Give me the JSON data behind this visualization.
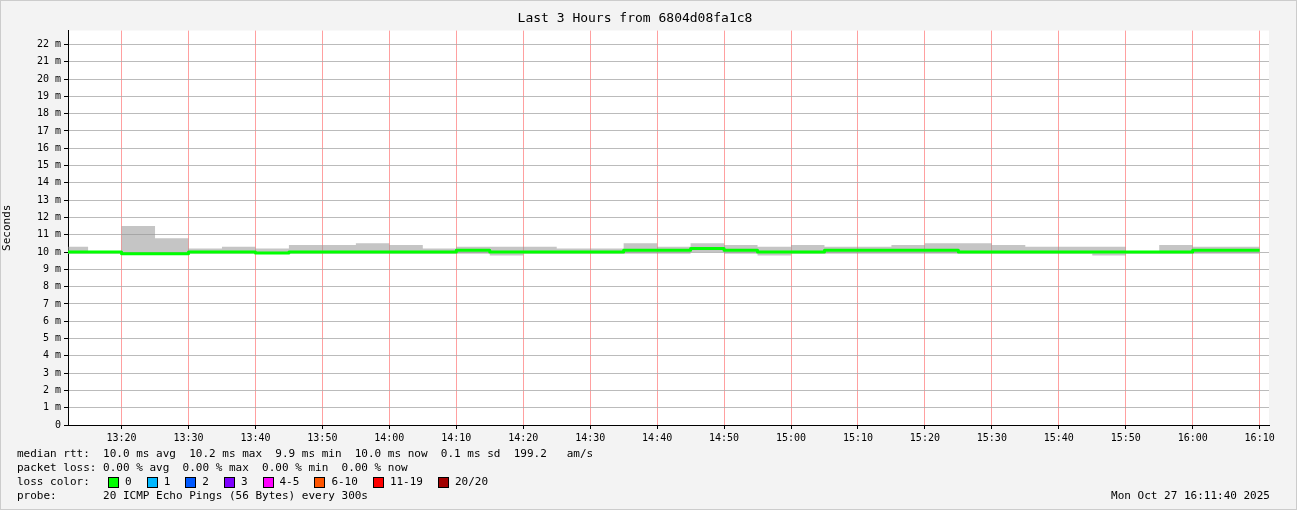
{
  "chart_data": {
    "type": "step",
    "title": "Last 3 Hours from 6804d08fa1c8",
    "ylabel": "Seconds",
    "legend_title": "loss color:",
    "legend": "bottom left",
    "grid": true,
    "marker": "none",
    "line_style": "solid",
    "x": [
      13.2,
      13.25,
      13.3333,
      13.4167,
      13.5,
      13.5833,
      13.6667,
      13.75,
      13.8333,
      13.9167,
      14,
      14.0833,
      14.1667,
      14.25,
      14.3333,
      14.4167,
      14.5,
      14.5833,
      14.6667,
      14.75,
      14.8333,
      14.9167,
      15,
      15.0833,
      15.1667,
      15.25,
      15.3333,
      15.4167,
      15.5,
      15.5833,
      15.6667,
      15.75,
      15.8333,
      15.9167,
      16,
      16.0833,
      16.1667
    ],
    "xlim": [
      13.2,
      16.19
    ],
    "xticks": [
      {
        "value": 13.3333,
        "label": "13:20"
      },
      {
        "value": 13.5,
        "label": "13:30"
      },
      {
        "value": 13.6667,
        "label": "13:40"
      },
      {
        "value": 13.8333,
        "label": "13:50"
      },
      {
        "value": 14,
        "label": "14:00"
      },
      {
        "value": 14.1667,
        "label": "14:10"
      },
      {
        "value": 14.3333,
        "label": "14:20"
      },
      {
        "value": 14.5,
        "label": "14:30"
      },
      {
        "value": 14.6667,
        "label": "14:40"
      },
      {
        "value": 14.8333,
        "label": "14:50"
      },
      {
        "value": 15,
        "label": "15:00"
      },
      {
        "value": 15.1667,
        "label": "15:10"
      },
      {
        "value": 15.3333,
        "label": "15:20"
      },
      {
        "value": 15.5,
        "label": "15:30"
      },
      {
        "value": 15.6667,
        "label": "15:40"
      },
      {
        "value": 15.8333,
        "label": "15:50"
      },
      {
        "value": 16,
        "label": "16:00"
      },
      {
        "value": 16.1667,
        "label": "16:10"
      }
    ],
    "ylim": [
      0,
      22.8
    ],
    "yticks": [
      0,
      {
        "value": 1,
        "label": "1 m"
      },
      {
        "value": 2,
        "label": "2 m"
      },
      {
        "value": 3,
        "label": "3 m"
      },
      {
        "value": 4,
        "label": "4 m"
      },
      {
        "value": 5,
        "label": "5 m"
      },
      {
        "value": 6,
        "label": "6 m"
      },
      {
        "value": 7,
        "label": "7 m"
      },
      {
        "value": 8,
        "label": "8 m"
      },
      {
        "value": 9,
        "label": "9 m"
      },
      {
        "value": 10,
        "label": "10 m"
      },
      {
        "value": 11,
        "label": "11 m"
      },
      {
        "value": 12,
        "label": "12 m"
      },
      {
        "value": 13,
        "label": "13 m"
      },
      {
        "value": 14,
        "label": "14 m"
      },
      {
        "value": 15,
        "label": "15 m"
      },
      {
        "value": 16,
        "label": "16 m"
      },
      {
        "value": 17,
        "label": "17 m"
      },
      {
        "value": 18,
        "label": "18 m"
      },
      {
        "value": 19,
        "label": "19 m"
      },
      {
        "value": 20,
        "label": "20 m"
      },
      {
        "value": 21,
        "label": "21 m"
      },
      {
        "value": 22,
        "label": "22 m"
      }
    ],
    "series": [
      {
        "name": "0",
        "color": "#00ff00",
        "values": [
          10.0,
          10.0,
          10.0,
          9.9,
          9.9,
          10.0,
          10.0,
          9.95,
          10.0,
          10.0,
          10.0,
          10.0,
          10.0,
          10.1,
          10.0,
          10.0,
          10.0,
          10.0,
          10.1,
          10.1,
          10.2,
          10.1,
          10.0,
          10.0,
          10.1,
          10.1,
          10.1,
          10.1,
          10.0,
          10.0,
          10.0,
          10.0,
          10.0,
          10.0,
          10.0,
          10.1,
          10.1
        ],
        "lower": [
          9.9,
          9.9,
          9.9,
          9.9,
          9.9,
          9.9,
          9.9,
          9.9,
          9.9,
          9.9,
          9.9,
          9.9,
          9.9,
          9.9,
          9.8,
          9.9,
          9.9,
          9.9,
          9.9,
          9.9,
          10.0,
          9.9,
          9.8,
          9.9,
          9.9,
          9.9,
          9.9,
          9.9,
          9.9,
          9.9,
          9.9,
          9.9,
          9.8,
          9.9,
          9.9,
          9.9,
          9.9
        ],
        "upper": [
          10.5,
          10.3,
          10.0,
          11.5,
          10.8,
          10.2,
          10.3,
          10.2,
          10.4,
          10.4,
          10.5,
          10.4,
          10.2,
          10.3,
          10.3,
          10.3,
          10.2,
          10.2,
          10.5,
          10.3,
          10.5,
          10.4,
          10.3,
          10.4,
          10.3,
          10.3,
          10.4,
          10.5,
          10.5,
          10.4,
          10.3,
          10.3,
          10.3,
          10.0,
          10.4,
          10.3,
          10.3
        ]
      },
      {
        "name": "1",
        "color": "#00b8ff",
        "values": [
          null,
          null,
          null,
          null,
          null,
          null,
          null,
          null,
          null,
          null,
          null,
          null,
          null,
          null,
          null,
          null,
          null,
          null,
          null,
          null,
          null,
          null,
          null,
          null,
          null,
          null,
          null,
          null,
          null,
          null,
          null,
          null,
          null,
          null,
          null,
          null,
          null
        ]
      },
      {
        "name": "2",
        "color": "#0059ff",
        "values": [
          null,
          null,
          null,
          null,
          null,
          null,
          null,
          null,
          null,
          null,
          null,
          null,
          null,
          null,
          null,
          null,
          null,
          null,
          null,
          null,
          null,
          null,
          null,
          null,
          null,
          null,
          null,
          null,
          null,
          null,
          null,
          null,
          null,
          null,
          null,
          null,
          null
        ]
      },
      {
        "name": "3",
        "color": "#7e00ff",
        "values": [
          null,
          null,
          null,
          null,
          null,
          null,
          null,
          null,
          null,
          null,
          null,
          null,
          null,
          null,
          null,
          null,
          null,
          null,
          null,
          null,
          null,
          null,
          null,
          null,
          null,
          null,
          null,
          null,
          null,
          null,
          null,
          null,
          null,
          null,
          null,
          null,
          null
        ]
      },
      {
        "name": "4-5",
        "color": "#ff00ff",
        "values": [
          null,
          null,
          null,
          null,
          null,
          null,
          null,
          null,
          null,
          null,
          null,
          null,
          null,
          null,
          null,
          null,
          null,
          null,
          null,
          null,
          null,
          null,
          null,
          null,
          null,
          null,
          null,
          null,
          null,
          null,
          null,
          null,
          null,
          null,
          null,
          null,
          null
        ]
      },
      {
        "name": "6-10",
        "color": "#ff5500",
        "values": [
          null,
          null,
          null,
          null,
          null,
          null,
          null,
          null,
          null,
          null,
          null,
          null,
          null,
          null,
          null,
          null,
          null,
          null,
          null,
          null,
          null,
          null,
          null,
          null,
          null,
          null,
          null,
          null,
          null,
          null,
          null,
          null,
          null,
          null,
          null,
          null,
          null
        ]
      },
      {
        "name": "11-19",
        "color": "#ff0000",
        "values": [
          null,
          null,
          null,
          null,
          null,
          null,
          null,
          null,
          null,
          null,
          null,
          null,
          null,
          null,
          null,
          null,
          null,
          null,
          null,
          null,
          null,
          null,
          null,
          null,
          null,
          null,
          null,
          null,
          null,
          null,
          null,
          null,
          null,
          null,
          null,
          null,
          null
        ]
      },
      {
        "name": "20/20",
        "color": "#a10000",
        "values": [
          null,
          null,
          null,
          null,
          null,
          null,
          null,
          null,
          null,
          null,
          null,
          null,
          null,
          null,
          null,
          null,
          null,
          null,
          null,
          null,
          null,
          null,
          null,
          null,
          null,
          null,
          null,
          null,
          null,
          null,
          null,
          null,
          null,
          null,
          null,
          null,
          null
        ]
      }
    ],
    "annotations": [
      "median rtt:  10.0 ms avg  10.2 ms max  9.9 ms min  10.0 ms now  0.1 ms sd  199.2   am/s",
      "packet loss: 0.00 % avg  0.00 % max  0.00 % min  0.00 % now",
      "probe:       20 ICMP Echo Pings (56 Bytes) every 300s",
      "Mon Oct 27 16:11:40 2025"
    ]
  }
}
